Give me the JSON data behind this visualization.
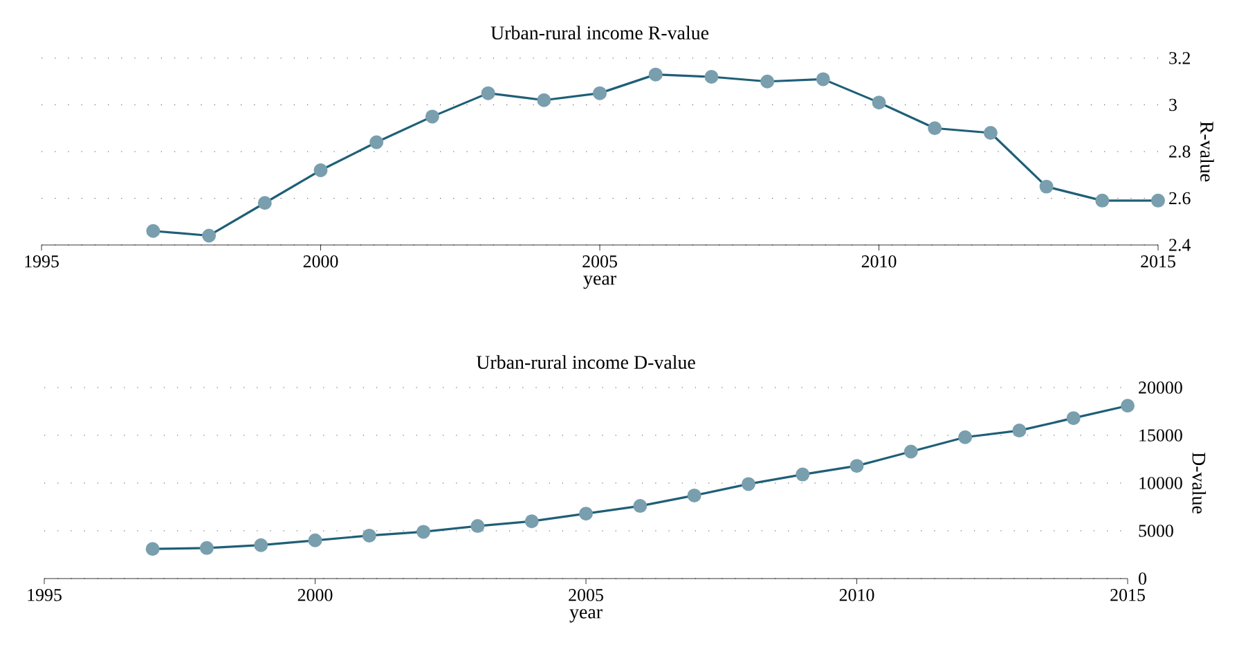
{
  "chart_data": [
    {
      "type": "line",
      "title": "Urban-rural income R-value",
      "xlabel": "year",
      "ylabel": "R-value",
      "x": [
        1997,
        1998,
        1999,
        2000,
        2001,
        2002,
        2003,
        2004,
        2005,
        2006,
        2007,
        2008,
        2009,
        2010,
        2011,
        2012,
        2013,
        2014,
        2015
      ],
      "xlim": [
        1995,
        2015
      ],
      "xticks": [
        1995,
        2000,
        2005,
        2010,
        2015
      ],
      "ylim": [
        2.4,
        3.2
      ],
      "yticks": [
        2.4,
        2.6,
        2.8,
        3,
        3.2
      ],
      "grid": "y",
      "marker": "circle",
      "line_style": "solid",
      "series": [
        {
          "color": "#1f5f78",
          "values": [
            2.46,
            2.44,
            2.58,
            2.72,
            2.84,
            2.95,
            3.05,
            3.02,
            3.05,
            3.13,
            3.12,
            3.1,
            3.11,
            3.01,
            2.9,
            2.88,
            2.65,
            2.59,
            2.59
          ]
        }
      ]
    },
    {
      "type": "line",
      "title": "Urban-rural income D-value",
      "xlabel": "year",
      "ylabel": "D-value",
      "x": [
        1997,
        1998,
        1999,
        2000,
        2001,
        2002,
        2003,
        2004,
        2005,
        2006,
        2007,
        2008,
        2009,
        2010,
        2011,
        2012,
        2013,
        2014,
        2015
      ],
      "xlim": [
        1995,
        2015
      ],
      "xticks": [
        1995,
        2000,
        2005,
        2010,
        2015
      ],
      "ylim": [
        0,
        20000
      ],
      "yticks": [
        0,
        5000,
        10000,
        15000,
        20000
      ],
      "grid": "y",
      "marker": "circle",
      "line_style": "solid",
      "series": [
        {
          "color": "#1f5f78",
          "values": [
            3100,
            3200,
            3500,
            4000,
            4500,
            4900,
            5500,
            6000,
            6800,
            7600,
            8700,
            9900,
            10900,
            11800,
            13300,
            14800,
            15500,
            16800,
            18100
          ]
        }
      ]
    }
  ]
}
